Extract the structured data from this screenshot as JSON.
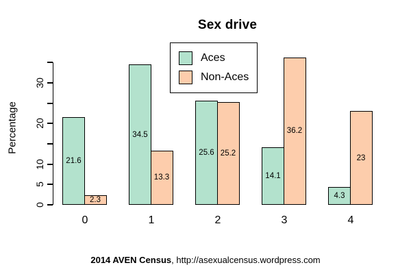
{
  "title": "Sex drive",
  "footer": {
    "bold": "2014 AVEN Census",
    "regular": ", http://asexualcensus.wordpress.com"
  },
  "chart_data": {
    "type": "bar",
    "title": "Sex drive",
    "xlabel": "",
    "ylabel": "Percentage",
    "categories": [
      "0",
      "1",
      "2",
      "3",
      "4"
    ],
    "series": [
      {
        "name": "Aces",
        "color": "#B3E2CD",
        "values": [
          21.6,
          34.5,
          25.6,
          14.1,
          4.3
        ],
        "labels": [
          "21.6",
          "34.5",
          "25.6",
          "14.1",
          "4.3"
        ]
      },
      {
        "name": "Non-Aces",
        "color": "#FDCDAC",
        "values": [
          2.3,
          13.3,
          25.2,
          36.2,
          23
        ],
        "labels": [
          "2.3",
          "13.3",
          "25.2",
          "36.2",
          "23"
        ]
      }
    ],
    "ylim": [
      0,
      35
    ],
    "yticks": [
      0,
      5,
      10,
      15,
      20,
      25,
      30,
      35
    ],
    "ytick_labels_shown": [
      0,
      5,
      10,
      20,
      30
    ],
    "grid": false,
    "legend_position": "top-center",
    "bar_border_color": "#000000",
    "value_labels_inside_bars": true
  }
}
